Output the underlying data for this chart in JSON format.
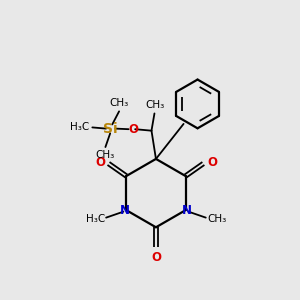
{
  "bg_color": "#e8e8e8",
  "atom_colors": {
    "C": "#000000",
    "N": "#0000cc",
    "O": "#dd0000",
    "Si": "#b8860b"
  },
  "bond_color": "#000000",
  "figsize": [
    3.0,
    3.0
  ],
  "dpi": 100,
  "xlim": [
    0,
    10
  ],
  "ylim": [
    0,
    10
  ]
}
